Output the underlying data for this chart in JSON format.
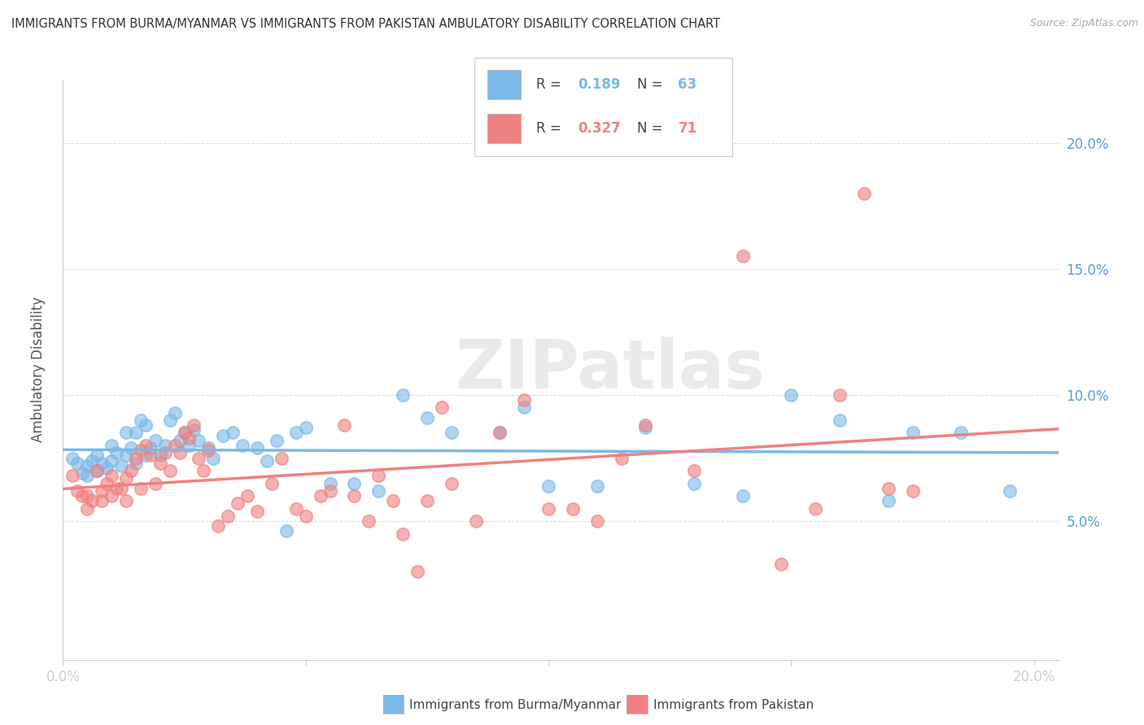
{
  "title": "IMMIGRANTS FROM BURMA/MYANMAR VS IMMIGRANTS FROM PAKISTAN AMBULATORY DISABILITY CORRELATION CHART",
  "source": "Source: ZipAtlas.com",
  "ylabel": "Ambulatory Disability",
  "xlim": [
    0.0,
    0.205
  ],
  "ylim": [
    -0.005,
    0.225
  ],
  "blue_R": 0.189,
  "blue_N": 63,
  "pink_R": 0.327,
  "pink_N": 71,
  "blue_color": "#7ab8e8",
  "pink_color": "#f08080",
  "blue_label": "Immigrants from Burma/Myanmar",
  "pink_label": "Immigrants from Pakistan",
  "watermark": "ZIPatlas",
  "background_color": "#ffffff",
  "blue_x": [
    0.002,
    0.003,
    0.004,
    0.005,
    0.005,
    0.006,
    0.007,
    0.007,
    0.008,
    0.009,
    0.01,
    0.01,
    0.011,
    0.012,
    0.013,
    0.013,
    0.014,
    0.015,
    0.015,
    0.016,
    0.017,
    0.017,
    0.018,
    0.019,
    0.02,
    0.021,
    0.022,
    0.023,
    0.024,
    0.025,
    0.026,
    0.027,
    0.028,
    0.03,
    0.031,
    0.033,
    0.035,
    0.037,
    0.04,
    0.042,
    0.044,
    0.046,
    0.048,
    0.05,
    0.055,
    0.06,
    0.065,
    0.07,
    0.075,
    0.08,
    0.09,
    0.095,
    0.1,
    0.11,
    0.12,
    0.13,
    0.14,
    0.15,
    0.16,
    0.17,
    0.175,
    0.185,
    0.195
  ],
  "blue_y": [
    0.075,
    0.073,
    0.069,
    0.072,
    0.068,
    0.074,
    0.07,
    0.076,
    0.073,
    0.071,
    0.074,
    0.08,
    0.077,
    0.072,
    0.076,
    0.085,
    0.079,
    0.073,
    0.085,
    0.09,
    0.088,
    0.076,
    0.079,
    0.082,
    0.076,
    0.08,
    0.09,
    0.093,
    0.082,
    0.085,
    0.08,
    0.086,
    0.082,
    0.079,
    0.075,
    0.084,
    0.085,
    0.08,
    0.079,
    0.074,
    0.082,
    0.046,
    0.085,
    0.087,
    0.065,
    0.065,
    0.062,
    0.1,
    0.091,
    0.085,
    0.085,
    0.095,
    0.064,
    0.064,
    0.087,
    0.065,
    0.06,
    0.1,
    0.09,
    0.058,
    0.085,
    0.085,
    0.062
  ],
  "pink_x": [
    0.002,
    0.003,
    0.004,
    0.005,
    0.005,
    0.006,
    0.007,
    0.008,
    0.008,
    0.009,
    0.01,
    0.01,
    0.011,
    0.012,
    0.013,
    0.013,
    0.014,
    0.015,
    0.016,
    0.016,
    0.017,
    0.018,
    0.019,
    0.02,
    0.021,
    0.022,
    0.023,
    0.024,
    0.025,
    0.026,
    0.027,
    0.028,
    0.029,
    0.03,
    0.032,
    0.034,
    0.036,
    0.038,
    0.04,
    0.043,
    0.045,
    0.048,
    0.05,
    0.053,
    0.055,
    0.058,
    0.06,
    0.063,
    0.065,
    0.068,
    0.07,
    0.073,
    0.075,
    0.078,
    0.08,
    0.085,
    0.09,
    0.095,
    0.1,
    0.105,
    0.11,
    0.115,
    0.12,
    0.13,
    0.14,
    0.148,
    0.155,
    0.16,
    0.165,
    0.17,
    0.175
  ],
  "pink_y": [
    0.068,
    0.062,
    0.06,
    0.06,
    0.055,
    0.058,
    0.07,
    0.062,
    0.058,
    0.065,
    0.068,
    0.06,
    0.063,
    0.063,
    0.067,
    0.058,
    0.07,
    0.075,
    0.078,
    0.063,
    0.08,
    0.076,
    0.065,
    0.073,
    0.077,
    0.07,
    0.08,
    0.077,
    0.085,
    0.083,
    0.088,
    0.075,
    0.07,
    0.078,
    0.048,
    0.052,
    0.057,
    0.06,
    0.054,
    0.065,
    0.075,
    0.055,
    0.052,
    0.06,
    0.062,
    0.088,
    0.06,
    0.05,
    0.068,
    0.058,
    0.045,
    0.03,
    0.058,
    0.095,
    0.065,
    0.05,
    0.085,
    0.098,
    0.055,
    0.055,
    0.05,
    0.075,
    0.088,
    0.07,
    0.155,
    0.033,
    0.055,
    0.1,
    0.18,
    0.063,
    0.062
  ]
}
